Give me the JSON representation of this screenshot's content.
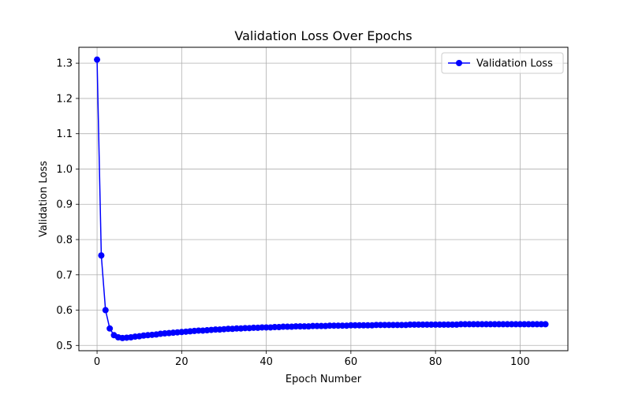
{
  "chart_data": {
    "type": "line",
    "title": "Validation Loss Over Epochs",
    "xlabel": "Epoch Number",
    "ylabel": "Validation Loss",
    "xlim": [
      -4.3,
      111.3
    ],
    "ylim": [
      0.485,
      1.345
    ],
    "x_ticks": [
      0,
      20,
      40,
      60,
      80,
      100
    ],
    "y_ticks": [
      0.5,
      0.6,
      0.7,
      0.8,
      0.9,
      1.0,
      1.1,
      1.2,
      1.3
    ],
    "y_tick_format": "1dp",
    "grid": true,
    "legend_position": "upper right",
    "series": [
      {
        "name": "Validation Loss",
        "color": "#0000ff",
        "marker": "circle",
        "x": [
          0,
          1,
          2,
          3,
          4,
          5,
          6,
          7,
          8,
          9,
          10,
          11,
          12,
          13,
          14,
          15,
          16,
          17,
          18,
          19,
          20,
          21,
          22,
          23,
          24,
          25,
          26,
          27,
          28,
          29,
          30,
          31,
          32,
          33,
          34,
          35,
          36,
          37,
          38,
          39,
          40,
          41,
          42,
          43,
          44,
          45,
          46,
          47,
          48,
          49,
          50,
          51,
          52,
          53,
          54,
          55,
          56,
          57,
          58,
          59,
          60,
          61,
          62,
          63,
          64,
          65,
          66,
          67,
          68,
          69,
          70,
          71,
          72,
          73,
          74,
          75,
          76,
          77,
          78,
          79,
          80,
          81,
          82,
          83,
          84,
          85,
          86,
          87,
          88,
          89,
          90,
          91,
          92,
          93,
          94,
          95,
          96,
          97,
          98,
          99,
          100,
          101,
          102,
          103,
          104,
          105,
          106
        ],
        "y": [
          1.31,
          0.755,
          0.6,
          0.548,
          0.529,
          0.523,
          0.521,
          0.522,
          0.523,
          0.525,
          0.526,
          0.528,
          0.529,
          0.53,
          0.531,
          0.533,
          0.534,
          0.535,
          0.536,
          0.537,
          0.538,
          0.539,
          0.54,
          0.541,
          0.542,
          0.542,
          0.543,
          0.544,
          0.545,
          0.545,
          0.546,
          0.547,
          0.547,
          0.548,
          0.548,
          0.549,
          0.549,
          0.55,
          0.55,
          0.551,
          0.551,
          0.551,
          0.552,
          0.552,
          0.553,
          0.553,
          0.553,
          0.554,
          0.554,
          0.554,
          0.554,
          0.555,
          0.555,
          0.555,
          0.555,
          0.556,
          0.556,
          0.556,
          0.556,
          0.556,
          0.557,
          0.557,
          0.557,
          0.557,
          0.557,
          0.557,
          0.558,
          0.558,
          0.558,
          0.558,
          0.558,
          0.558,
          0.558,
          0.558,
          0.559,
          0.559,
          0.559,
          0.559,
          0.559,
          0.559,
          0.559,
          0.559,
          0.559,
          0.559,
          0.559,
          0.559,
          0.56,
          0.56,
          0.56,
          0.56,
          0.56,
          0.56,
          0.56,
          0.56,
          0.56,
          0.56,
          0.56,
          0.56,
          0.56,
          0.56,
          0.56,
          0.56,
          0.56,
          0.56,
          0.56,
          0.56,
          0.56
        ]
      }
    ]
  }
}
